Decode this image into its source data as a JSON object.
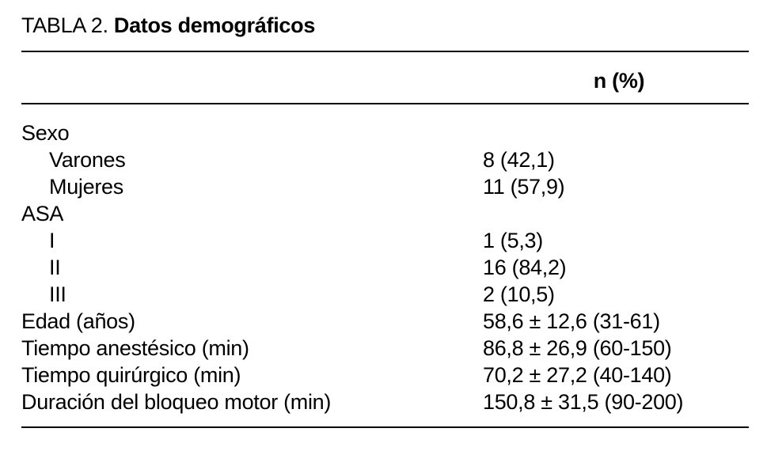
{
  "header": {
    "label": "TABLA 2.",
    "title": "Datos demográficos"
  },
  "table": {
    "column_header": "n (%)",
    "sections": [
      {
        "label": "Sexo",
        "rows": [
          [
            "Varones",
            "8 (42,1)"
          ],
          [
            "Mujeres",
            "11 (57,9)"
          ]
        ]
      },
      {
        "label": "ASA",
        "rows": [
          [
            "I",
            "1 (5,3)"
          ],
          [
            "II",
            "16 (84,2)"
          ],
          [
            "III",
            "2 (10,5)"
          ]
        ]
      }
    ],
    "rows": [
      [
        "Edad (años)",
        "58,6 ± 12,6 (31-61)"
      ],
      [
        "Tiempo anestésico (min)",
        "86,8 ± 26,9 (60-150)"
      ],
      [
        "Tiempo quirúrgico (min)",
        "70,2 ± 27,2 (40-140)"
      ],
      [
        "Duración del bloqueo motor (min)",
        "150,8 ± 31,5 (90-200)"
      ]
    ]
  }
}
